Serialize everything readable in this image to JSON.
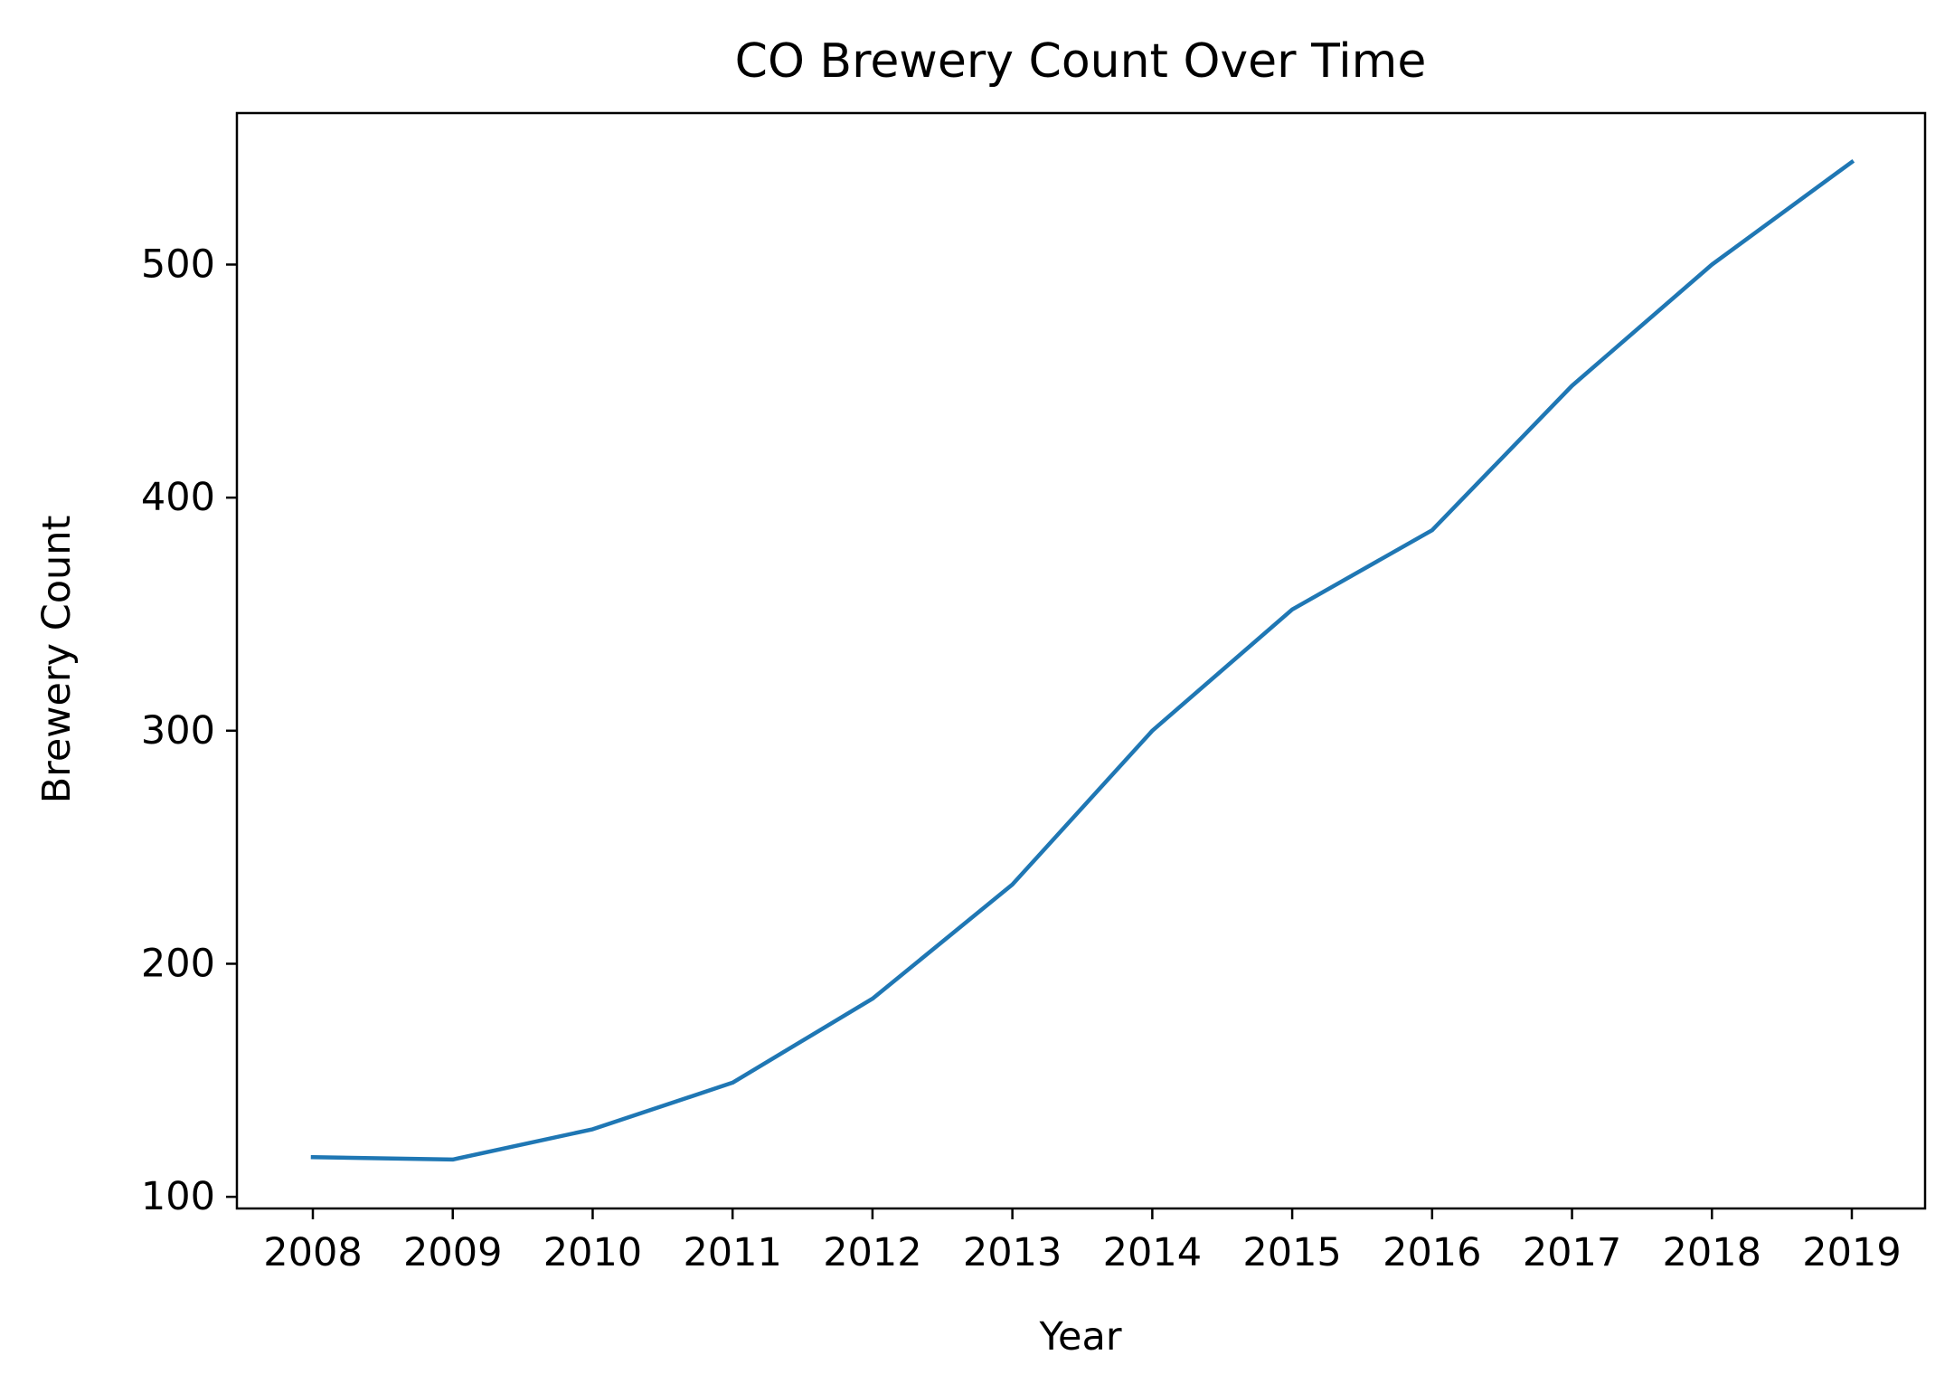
{
  "chart_data": {
    "type": "line",
    "title": "CO Brewery Count Over Time",
    "xlabel": "Year",
    "ylabel": "Brewery Count",
    "x": [
      "2008",
      "2009",
      "2010",
      "2011",
      "2012",
      "2013",
      "2014",
      "2015",
      "2016",
      "2017",
      "2018",
      "2019"
    ],
    "series": [
      {
        "values": [
          117,
          116,
          129,
          149,
          185,
          234,
          300,
          352,
          386,
          448,
          500,
          544
        ],
        "color": "#1f77b4"
      }
    ],
    "yticks": [
      "100",
      "200",
      "300",
      "400",
      "500"
    ],
    "ylim": [
      95,
      565
    ],
    "grid": false,
    "legend": "none"
  }
}
